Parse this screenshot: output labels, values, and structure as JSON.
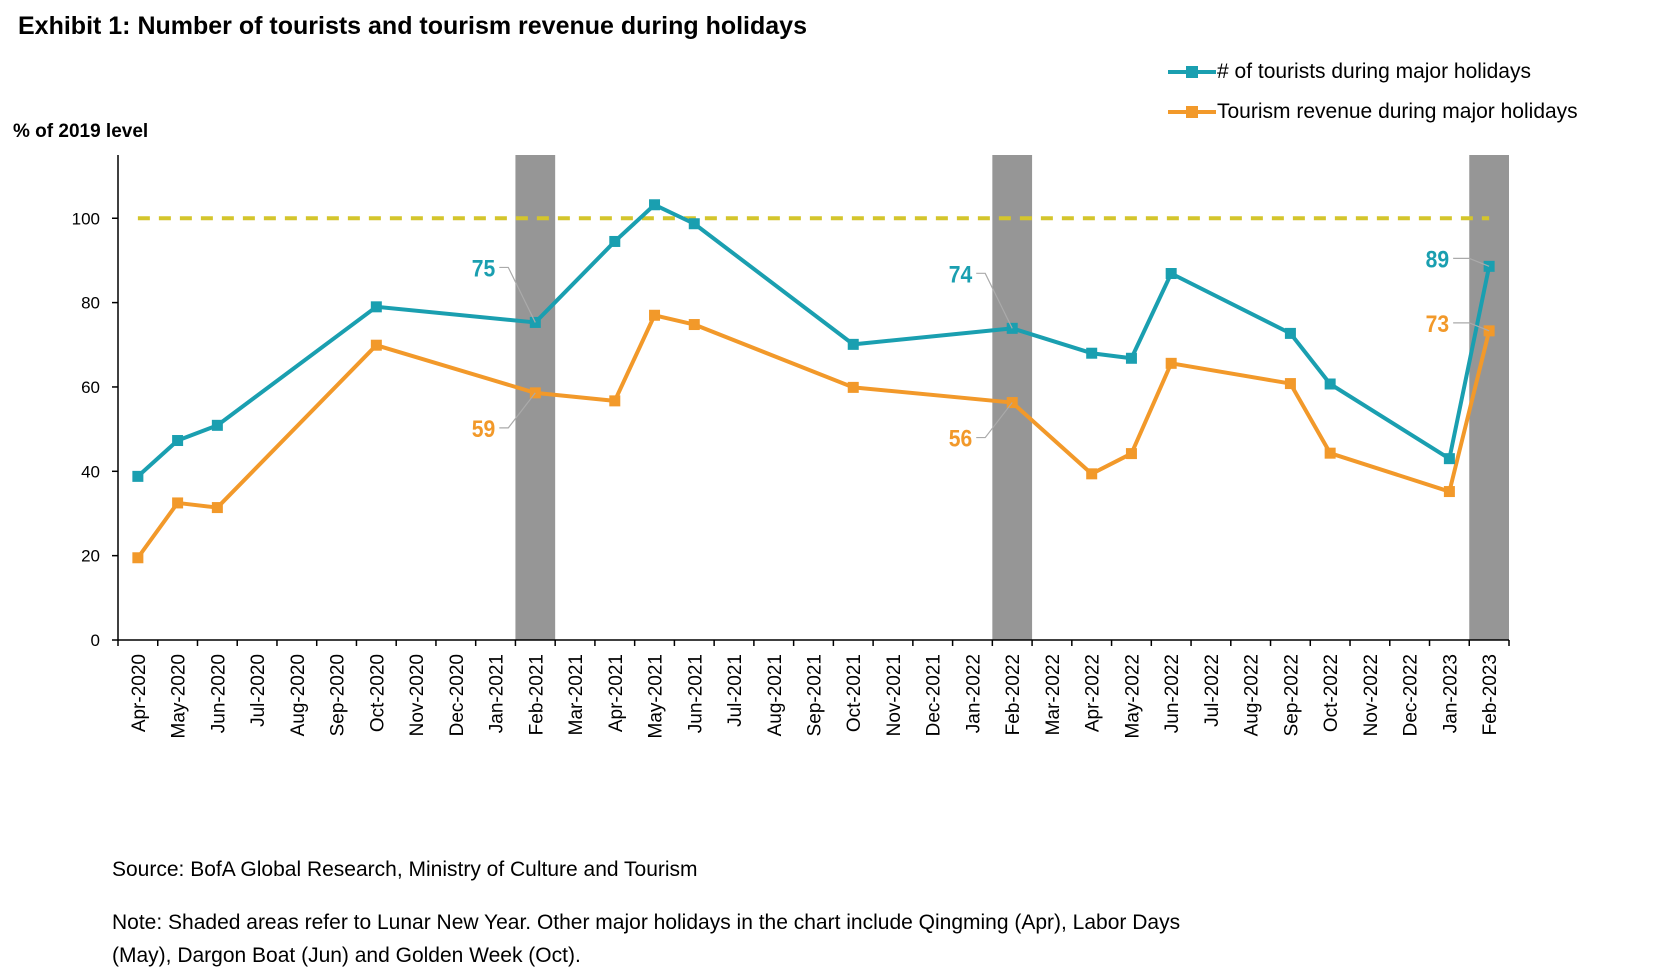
{
  "title": "Exhibit 1: Number of tourists and tourism revenue during holidays",
  "source": "Source: BofA Global Research, Ministry of Culture and Tourism",
  "note": "Note: Shaded areas refer to Lunar New Year. Other major holidays in the chart include Qingming (Apr), Labor Days (May), Dargon Boat (Jun) and Golden Week (Oct).",
  "colors": {
    "tourists": "#1a9fb0",
    "revenue": "#f2992a",
    "reference": "#d4c52c",
    "shade": "#969696"
  },
  "chart_data": {
    "type": "line",
    "ylabel": "% of 2019 level",
    "xlabel": "",
    "ylim": [
      0,
      115
    ],
    "yticks": [
      0,
      20,
      40,
      60,
      80,
      100
    ],
    "grid": false,
    "legend_position": "top-right",
    "categories": [
      "Apr-2020",
      "May-2020",
      "Jun-2020",
      "Jul-2020",
      "Aug-2020",
      "Sep-2020",
      "Oct-2020",
      "Nov-2020",
      "Dec-2020",
      "Jan-2021",
      "Feb-2021",
      "Mar-2021",
      "Apr-2021",
      "May-2021",
      "Jun-2021",
      "Jul-2021",
      "Aug-2021",
      "Sep-2021",
      "Oct-2021",
      "Nov-2021",
      "Dec-2021",
      "Jan-2022",
      "Feb-2022",
      "Mar-2022",
      "Apr-2022",
      "May-2022",
      "Jun-2022",
      "Jul-2022",
      "Aug-2022",
      "Sep-2022",
      "Oct-2022",
      "Nov-2022",
      "Dec-2022",
      "Jan-2023",
      "Feb-2023"
    ],
    "shaded_categories": [
      "Feb-2021",
      "Feb-2022",
      "Feb-2023"
    ],
    "reference_line": 100,
    "series": [
      {
        "name": "# of tourists during major holidays",
        "points": [
          [
            "Apr-2020",
            38.8
          ],
          [
            "May-2020",
            47.3
          ],
          [
            "Jun-2020",
            50.9
          ],
          [
            "Oct-2020",
            79
          ],
          [
            "Feb-2021",
            75.3
          ],
          [
            "Apr-2021",
            94.5
          ],
          [
            "May-2021",
            103.2
          ],
          [
            "Jun-2021",
            98.7
          ],
          [
            "Oct-2021",
            70.1
          ],
          [
            "Feb-2022",
            73.9
          ],
          [
            "Apr-2022",
            68
          ],
          [
            "May-2022",
            66.8
          ],
          [
            "Jun-2022",
            86.9
          ],
          [
            "Sep-2022",
            72.7
          ],
          [
            "Oct-2022",
            60.7
          ],
          [
            "Jan-2023",
            43
          ],
          [
            "Feb-2023",
            88.6
          ]
        ]
      },
      {
        "name": "Tourism revenue during major holidays",
        "points": [
          [
            "Apr-2020",
            19.5
          ],
          [
            "May-2020",
            32.5
          ],
          [
            "Jun-2020",
            31.4
          ],
          [
            "Oct-2020",
            69.9
          ],
          [
            "Feb-2021",
            58.6
          ],
          [
            "Apr-2021",
            56.7
          ],
          [
            "May-2021",
            77
          ],
          [
            "Jun-2021",
            74.8
          ],
          [
            "Oct-2021",
            59.9
          ],
          [
            "Feb-2022",
            56.3
          ],
          [
            "Apr-2022",
            39.4
          ],
          [
            "May-2022",
            44.2
          ],
          [
            "Jun-2022",
            65.6
          ],
          [
            "Sep-2022",
            60.8
          ],
          [
            "Oct-2022",
            44.3
          ],
          [
            "Jan-2023",
            35.2
          ],
          [
            "Feb-2023",
            73.3
          ]
        ]
      }
    ],
    "annotations": [
      {
        "series": 0,
        "category": "Feb-2021",
        "text": "75"
      },
      {
        "series": 1,
        "category": "Feb-2021",
        "text": "59"
      },
      {
        "series": 0,
        "category": "Feb-2022",
        "text": "74"
      },
      {
        "series": 1,
        "category": "Feb-2022",
        "text": "56"
      },
      {
        "series": 0,
        "category": "Feb-2023",
        "text": "89"
      },
      {
        "series": 1,
        "category": "Feb-2023",
        "text": "73"
      }
    ]
  }
}
